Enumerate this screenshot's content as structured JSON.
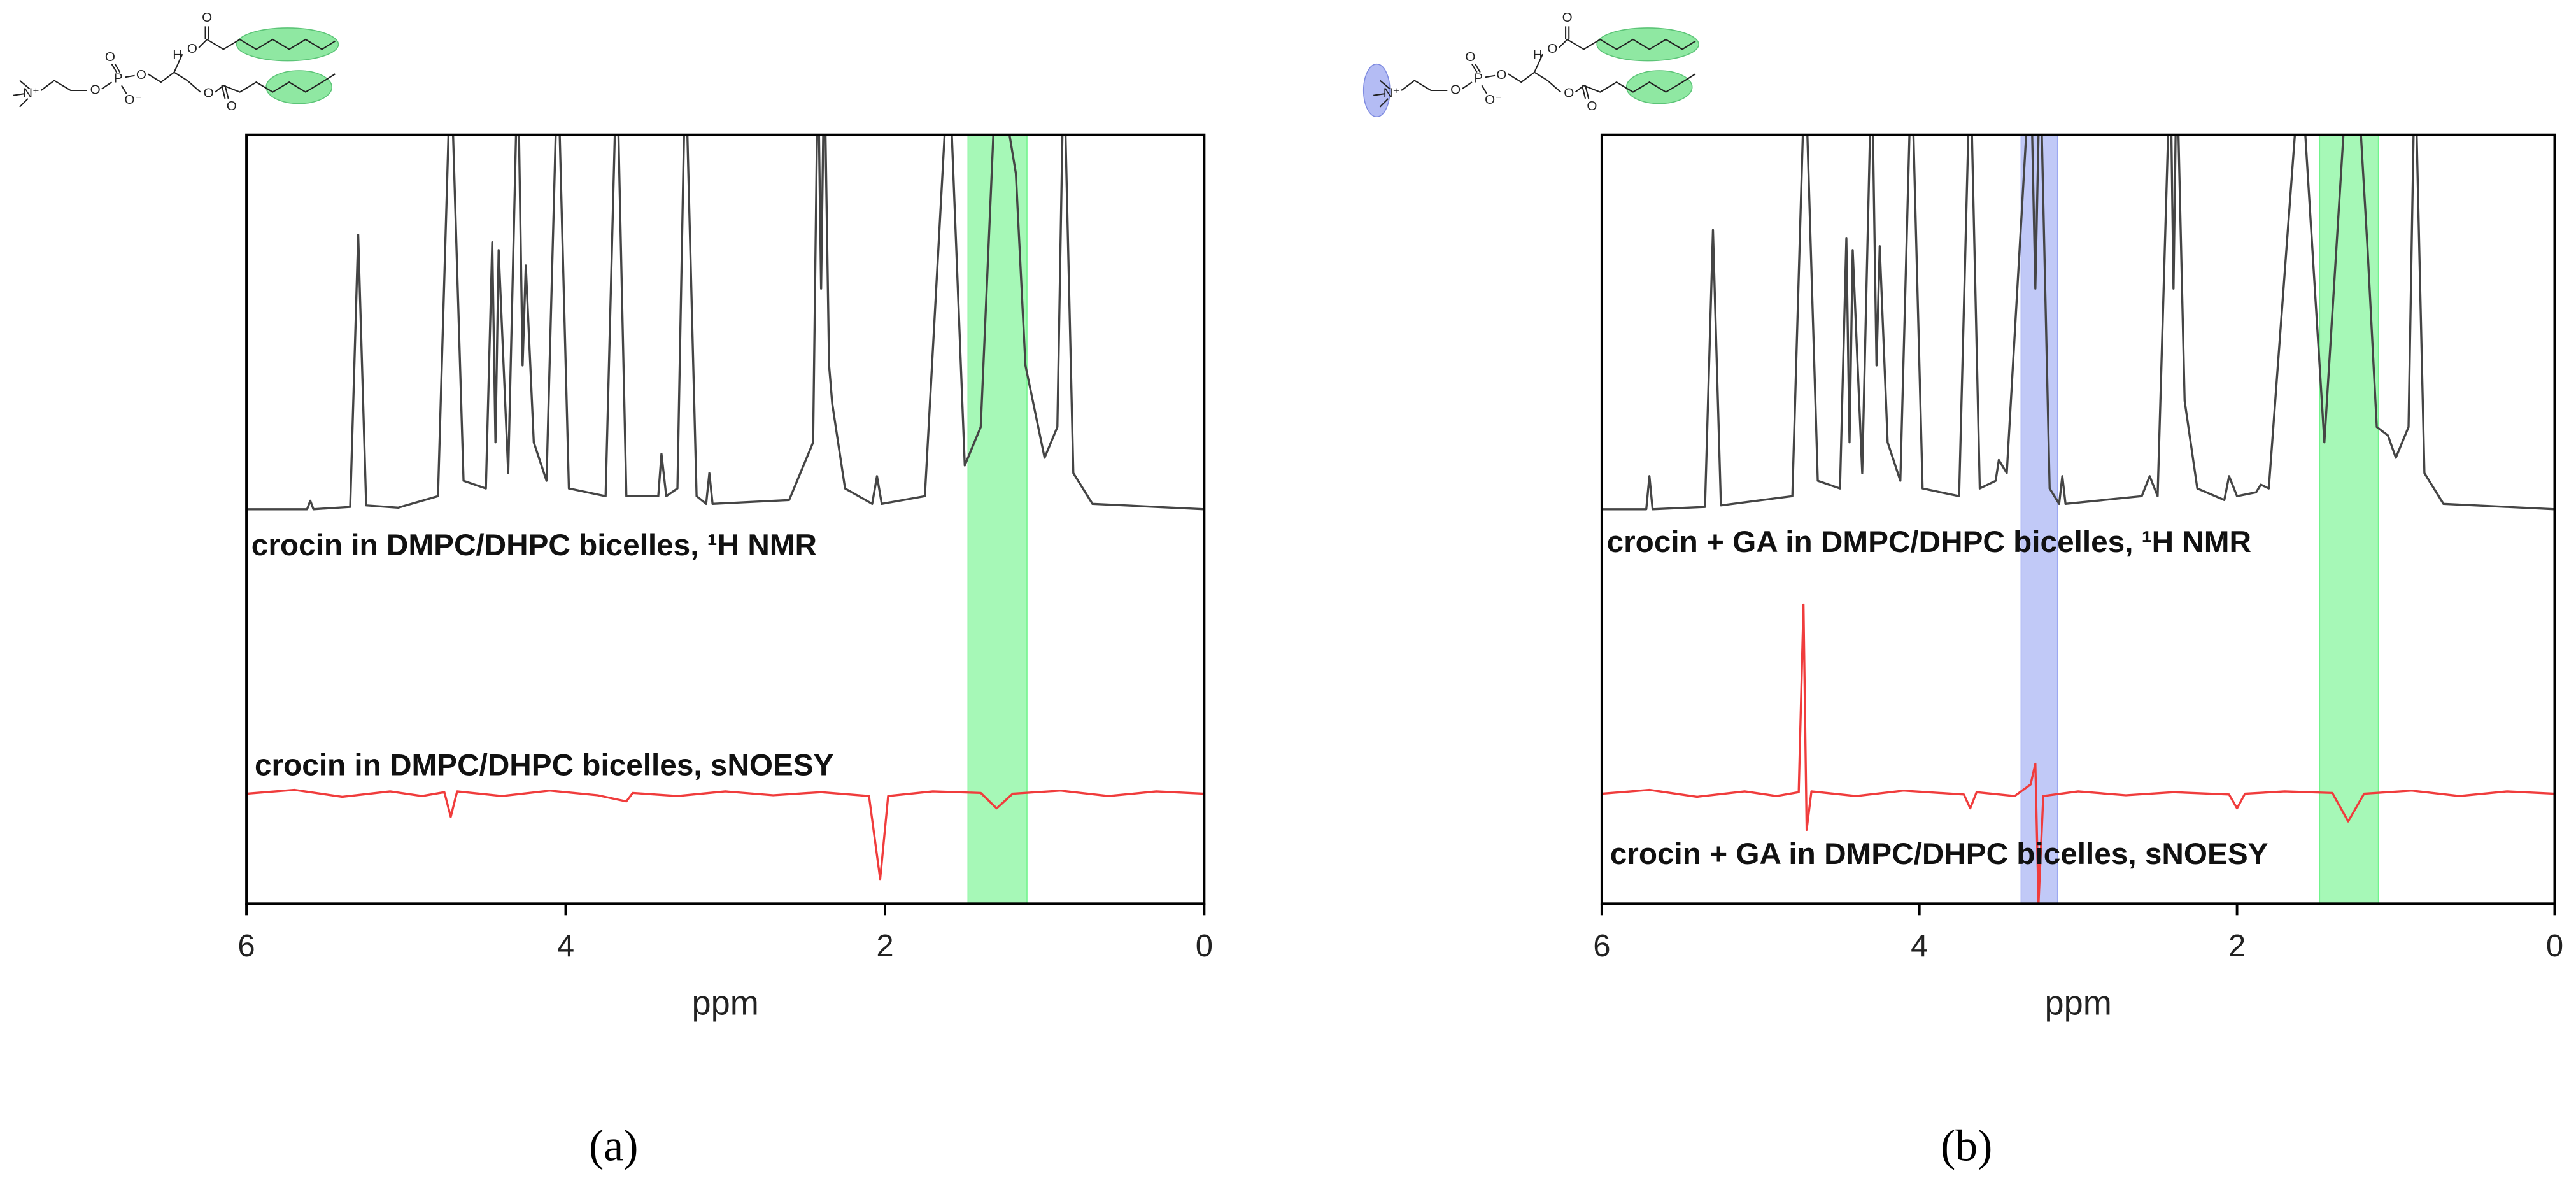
{
  "chart_data": [
    {
      "type": "line",
      "panel_label": "(a)",
      "xlabel": "ppm",
      "xlim": [
        6,
        0
      ],
      "xticks": [
        6,
        4,
        2,
        0
      ],
      "ylim": [
        0,
        100
      ],
      "highlights": [
        {
          "range": [
            1.48,
            1.11
          ],
          "color": "#5df27c"
        }
      ],
      "structure_labels": [
        "N⁺",
        "O",
        "P",
        "O",
        "O⁻",
        "O",
        "H",
        "O",
        "O",
        "O",
        "O"
      ],
      "series": [
        {
          "name": "crocin in DMPC/DHPC bicelles, ¹H NMR",
          "color": "#454545",
          "x": [
            6,
            5.62,
            5.6,
            5.58,
            5.35,
            5.3,
            5.25,
            5.05,
            4.8,
            4.72,
            4.64,
            4.5,
            4.46,
            4.44,
            4.42,
            4.36,
            4.3,
            4.27,
            4.25,
            4.2,
            4.12,
            4.05,
            3.98,
            3.75,
            3.68,
            3.62,
            3.42,
            3.4,
            3.37,
            3.3,
            3.25,
            3.18,
            3.12,
            3.1,
            3.08,
            2.6,
            2.45,
            2.42,
            2.4,
            2.38,
            2.35,
            2.33,
            2.25,
            2.08,
            2.05,
            2.02,
            1.75,
            1.6,
            1.5,
            1.4,
            1.3,
            1.22,
            1.18,
            1.12,
            1.0,
            0.92,
            0.88,
            0.82,
            0.7,
            0
          ],
          "values": [
            51.3,
            51.3,
            52.4,
            51.3,
            51.6,
            87,
            51.8,
            51.5,
            53,
            110,
            55,
            54,
            86,
            60,
            85,
            56,
            110,
            70,
            83,
            60,
            55,
            110,
            54,
            53,
            110,
            53,
            53,
            58.5,
            53,
            54,
            110,
            53,
            52,
            56,
            52,
            52.5,
            60,
            110,
            80,
            110,
            70,
            65,
            54,
            52,
            55.6,
            52,
            53,
            110,
            57,
            62,
            110,
            100,
            95,
            70,
            58,
            62,
            110,
            56,
            52,
            51.3
          ]
        },
        {
          "name": "crocin in DMPC/DHPC bicelles, sNOESY",
          "color": "#f03c3c",
          "x": [
            6,
            5.7,
            5.4,
            5.1,
            4.9,
            4.76,
            4.72,
            4.68,
            4.4,
            4.1,
            3.8,
            3.62,
            3.58,
            3.3,
            3.0,
            2.7,
            2.4,
            2.1,
            2.03,
            1.98,
            1.7,
            1.4,
            1.3,
            1.2,
            0.9,
            0.6,
            0.3,
            0
          ],
          "values": [
            14.3,
            14.8,
            13.9,
            14.6,
            14.0,
            14.5,
            11.3,
            14.6,
            14.0,
            14.7,
            14.1,
            13.3,
            14.4,
            14.0,
            14.6,
            14.1,
            14.5,
            14.0,
            3.2,
            14.0,
            14.6,
            14.4,
            12.4,
            14.3,
            14.7,
            14.0,
            14.6,
            14.3
          ]
        }
      ]
    },
    {
      "type": "line",
      "panel_label": "(b)",
      "xlabel": "ppm",
      "xlim": [
        6,
        0
      ],
      "xticks": [
        6,
        4,
        2,
        0
      ],
      "ylim": [
        0,
        100
      ],
      "highlights": [
        {
          "range": [
            3.36,
            3.13
          ],
          "color": "#8e9cf0"
        },
        {
          "range": [
            1.48,
            1.11
          ],
          "color": "#5df27c"
        }
      ],
      "structure_labels": [
        "N⁺",
        "O",
        "P",
        "O",
        "O⁻",
        "O",
        "H",
        "O",
        "O",
        "O",
        "O"
      ],
      "series": [
        {
          "name": "crocin + GA in DMPC/DHPC bicelles, ¹H NMR",
          "color": "#454545",
          "x": [
            6,
            5.72,
            5.7,
            5.68,
            5.35,
            5.3,
            5.25,
            4.8,
            4.72,
            4.64,
            4.5,
            4.46,
            4.44,
            4.42,
            4.36,
            4.3,
            4.27,
            4.25,
            4.2,
            4.12,
            4.05,
            3.98,
            3.75,
            3.68,
            3.62,
            3.52,
            3.5,
            3.45,
            3.3,
            3.27,
            3.24,
            3.18,
            3.12,
            3.1,
            3.08,
            2.6,
            2.55,
            2.5,
            2.42,
            2.4,
            2.38,
            2.33,
            2.25,
            2.08,
            2.05,
            2.0,
            1.88,
            1.85,
            1.8,
            1.6,
            1.45,
            1.3,
            1.22,
            1.18,
            1.12,
            1.05,
            1.0,
            0.92,
            0.88,
            0.82,
            0.7,
            0
          ],
          "values": [
            51.3,
            51.3,
            55.6,
            51.3,
            51.6,
            87.6,
            51.8,
            53,
            110,
            55,
            54,
            86.5,
            60,
            85,
            56,
            110,
            70,
            85.5,
            60,
            55,
            110,
            54,
            53,
            110,
            54,
            55,
            57.7,
            56,
            110,
            80,
            110,
            54,
            52,
            55.6,
            52,
            53,
            55.6,
            53,
            110,
            80,
            110,
            65.4,
            54,
            52.5,
            55.6,
            53,
            53.5,
            54.5,
            54,
            110,
            60,
            110,
            100,
            85.9,
            62,
            60.9,
            58,
            62,
            110,
            56,
            52,
            51.3
          ]
        },
        {
          "name": "crocin + GA in DMPC/DHPC bicelles, sNOESY",
          "color": "#f03c3c",
          "x": [
            6,
            5.7,
            5.4,
            5.1,
            4.9,
            4.76,
            4.73,
            4.71,
            4.68,
            4.4,
            4.1,
            3.72,
            3.68,
            3.64,
            3.4,
            3.3,
            3.27,
            3.25,
            3.22,
            3.0,
            2.7,
            2.4,
            2.05,
            2.0,
            1.95,
            1.7,
            1.4,
            1.3,
            1.2,
            0.9,
            0.6,
            0.3,
            0
          ],
          "values": [
            14.3,
            14.8,
            13.9,
            14.6,
            14.0,
            14.5,
            38.9,
            9.6,
            14.6,
            14.0,
            14.7,
            14.2,
            12.4,
            14.5,
            14.0,
            15.5,
            18.2,
            0,
            14.0,
            14.6,
            14.1,
            14.5,
            14.2,
            12.4,
            14.3,
            14.6,
            14.4,
            10.7,
            14.3,
            14.7,
            14.0,
            14.6,
            14.3
          ]
        }
      ]
    }
  ]
}
